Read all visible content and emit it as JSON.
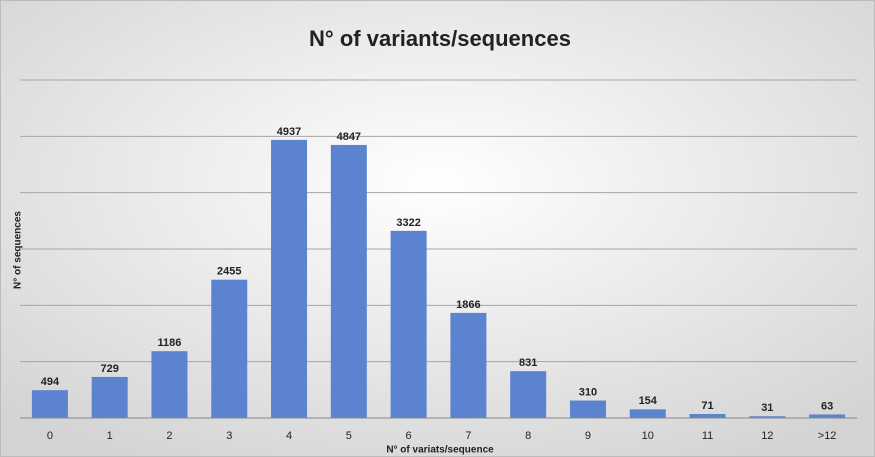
{
  "chart_data": {
    "type": "bar",
    "title": "N° of variants/sequences",
    "x_label": "N° of variats/sequence",
    "y_label": "N° of sequences",
    "categories": [
      "0",
      "1",
      "2",
      "3",
      "4",
      "5",
      "6",
      "7",
      "8",
      "9",
      "10",
      "11",
      "12",
      ">12"
    ],
    "values": [
      494,
      729,
      1186,
      2455,
      4937,
      4847,
      3322,
      1866,
      831,
      310,
      154,
      71,
      31,
      63
    ],
    "color": "#5b83cf",
    "ylim": [
      0,
      6000
    ],
    "yticks": [
      0,
      1000,
      2000,
      3000,
      4000,
      5000,
      6000
    ],
    "grid": true
  }
}
